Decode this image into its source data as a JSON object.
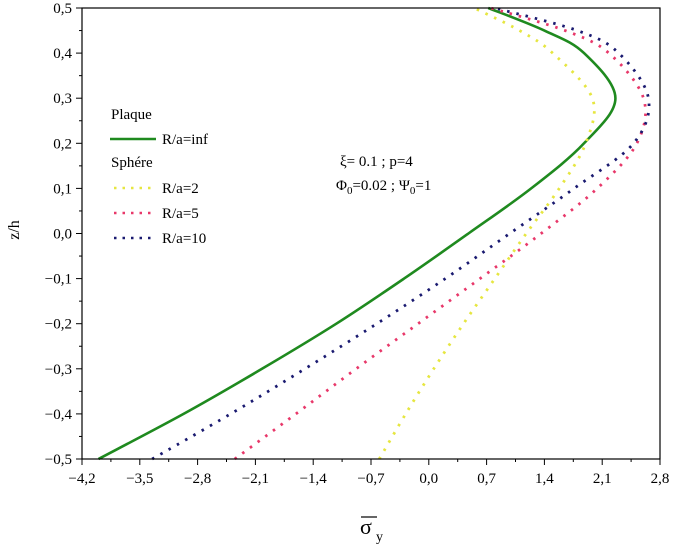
{
  "chart_data": {
    "type": "line",
    "title": "",
    "xlabel": "σ̄y",
    "xlabel_main": "σ",
    "xlabel_sub": "y",
    "ylabel": "z/h",
    "xlim": [
      -4.2,
      2.8
    ],
    "ylim": [
      -0.5,
      0.5
    ],
    "x_ticks": [
      -4.2,
      -3.5,
      -2.8,
      -2.1,
      -1.4,
      -0.7,
      0.0,
      0.7,
      1.4,
      2.1,
      2.8
    ],
    "x_tick_labels": [
      "−4,2",
      "−3,5",
      "−2,8",
      "−2,1",
      "−1,4",
      "−0,7",
      "0,0",
      "0,7",
      "1,4",
      "2,1",
      "2,8"
    ],
    "y_ticks": [
      -0.5,
      -0.4,
      -0.3,
      -0.2,
      -0.1,
      0.0,
      0.1,
      0.2,
      0.3,
      0.4,
      0.5
    ],
    "y_tick_labels": [
      "−0,5",
      "−0,4",
      "−0,3",
      "−0,2",
      "−0,1",
      "0,0",
      "0,1",
      "0,2",
      "0,3",
      "0,4",
      "0,5"
    ],
    "grid": false,
    "legend_position": "left",
    "legend": {
      "group1_title": "Plaque",
      "group2_title": "Sphére",
      "entries": [
        {
          "series": 0,
          "label": "R/a=inf"
        },
        {
          "series": 1,
          "label": "R/a=2"
        },
        {
          "series": 2,
          "label": "R/a=5"
        },
        {
          "series": 3,
          "label": "R/a=10"
        }
      ]
    },
    "annotations": [
      {
        "line": 1,
        "text": "ξ= 0.1 ; p=4"
      },
      {
        "line": 2,
        "text_parts": [
          "Φ",
          "0",
          "=0.02 ; Ψ",
          "0",
          "=1"
        ]
      }
    ],
    "series": [
      {
        "name": "R/a=inf",
        "color": "#1f8a1f",
        "style": "solid",
        "z": [
          -0.5,
          -0.4,
          -0.3,
          -0.2,
          -0.1,
          0.0,
          0.1,
          0.2,
          0.3,
          0.4,
          0.45,
          0.5
        ],
        "sigma": [
          -4.0,
          -2.97,
          -2.02,
          -1.12,
          -0.3,
          0.48,
          1.24,
          1.88,
          2.26,
          1.88,
          1.4,
          0.72
        ]
      },
      {
        "name": "R/a=2",
        "color": "#e6e640",
        "style": "dotted",
        "z": [
          -0.5,
          -0.4,
          -0.3,
          -0.2,
          -0.1,
          0.0,
          0.1,
          0.2,
          0.3,
          0.4,
          0.45,
          0.5
        ],
        "sigma": [
          -0.6,
          -0.28,
          0.06,
          0.42,
          0.8,
          1.18,
          1.58,
          1.9,
          1.98,
          1.5,
          1.1,
          0.55
        ]
      },
      {
        "name": "R/a=5",
        "color": "#e8386a",
        "style": "dotted",
        "z": [
          -0.5,
          -0.4,
          -0.3,
          -0.2,
          -0.1,
          0.0,
          0.1,
          0.2,
          0.3,
          0.4,
          0.45,
          0.5
        ],
        "sigma": [
          -2.35,
          -1.61,
          -0.88,
          -0.13,
          0.62,
          1.36,
          2.04,
          2.52,
          2.6,
          2.18,
          1.65,
          0.75
        ]
      },
      {
        "name": "R/a=10",
        "color": "#1a1a70",
        "style": "dotted",
        "z": [
          -0.5,
          -0.4,
          -0.3,
          -0.2,
          -0.1,
          0.0,
          0.1,
          0.2,
          0.3,
          0.4,
          0.45,
          0.5
        ],
        "sigma": [
          -3.35,
          -2.4,
          -1.5,
          -0.63,
          0.2,
          0.98,
          1.76,
          2.48,
          2.66,
          2.3,
          1.8,
          0.8
        ]
      }
    ]
  }
}
